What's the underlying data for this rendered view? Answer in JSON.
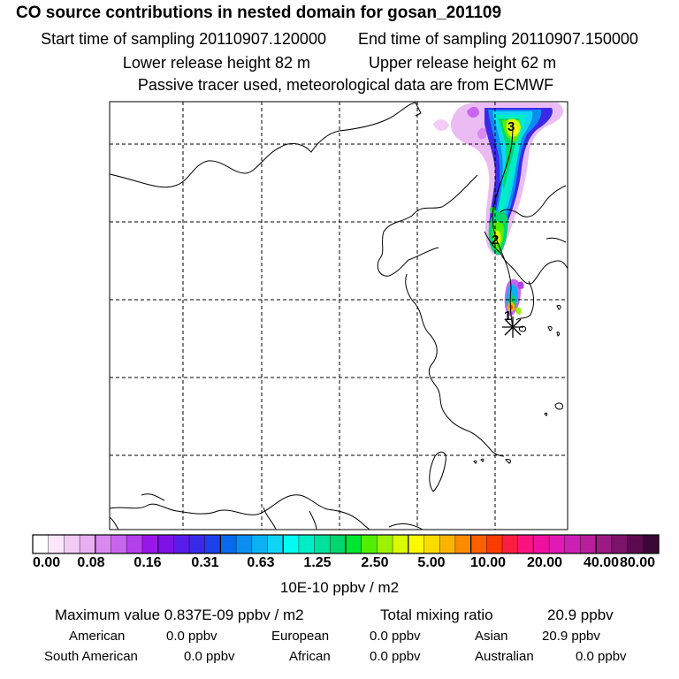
{
  "header": {
    "title": "CO  source contributions in nested domain for gosan_201109",
    "start_label": "Start time of sampling 20110907.120000",
    "end_label": "End time of sampling 20110907.150000",
    "lower_label": "Lower release height   82 m",
    "upper_label": "Upper release height   62 m",
    "note": "Passive tracer used, meteorological data are from ECMWF"
  },
  "map": {
    "trajectory_labels": [
      "1",
      "2",
      "3"
    ],
    "receptor_marker": "asterisk-icon"
  },
  "colorbar": {
    "colors": [
      "#ffffff",
      "#fbe6fb",
      "#f3ccf6",
      "#e8b0f2",
      "#d88af0",
      "#c865ee",
      "#b240ec",
      "#9a16ea",
      "#7f10e8",
      "#5a1ce8",
      "#3a2ae8",
      "#1c40ea",
      "#0a6aee",
      "#0a8ef2",
      "#0ab2f4",
      "#10d4f6",
      "#00fcf2",
      "#00eec6",
      "#00e29c",
      "#00d66e",
      "#00e632",
      "#52ee00",
      "#9cf200",
      "#dafa00",
      "#fafa00",
      "#fadc00",
      "#fab400",
      "#fa8c00",
      "#fa6000",
      "#fa3c00",
      "#fa1e40",
      "#fa1480",
      "#f010a0",
      "#e01ab4",
      "#cc20b4",
      "#b81e9c",
      "#9c1a84",
      "#7c126a",
      "#5c0a50",
      "#3c0636"
    ],
    "ticks": [
      "0.00",
      "0.08",
      "0.16",
      "0.31",
      "0.63",
      "1.25",
      "2.50",
      "5.00",
      "10.00",
      "20.00",
      "40.00",
      "80.00"
    ],
    "unit": "10E-10 ppbv / m2"
  },
  "stats": {
    "max_label": "Maximum value  0.837E-09 ppbv / m2",
    "total_label": "Total mixing ratio",
    "total_value": "20.9 ppbv",
    "american_label": "American",
    "american_value": "0.0 ppbv",
    "european_label": "European",
    "european_value": "0.0 ppbv",
    "asian_label": "Asian",
    "asian_value": "20.9 ppbv",
    "south_american_label": "South American",
    "south_american_value": "0.0 ppbv",
    "african_label": "African",
    "african_value": "0.0 ppbv",
    "australian_label": "Australian",
    "australian_value": "0.0 ppbv"
  }
}
